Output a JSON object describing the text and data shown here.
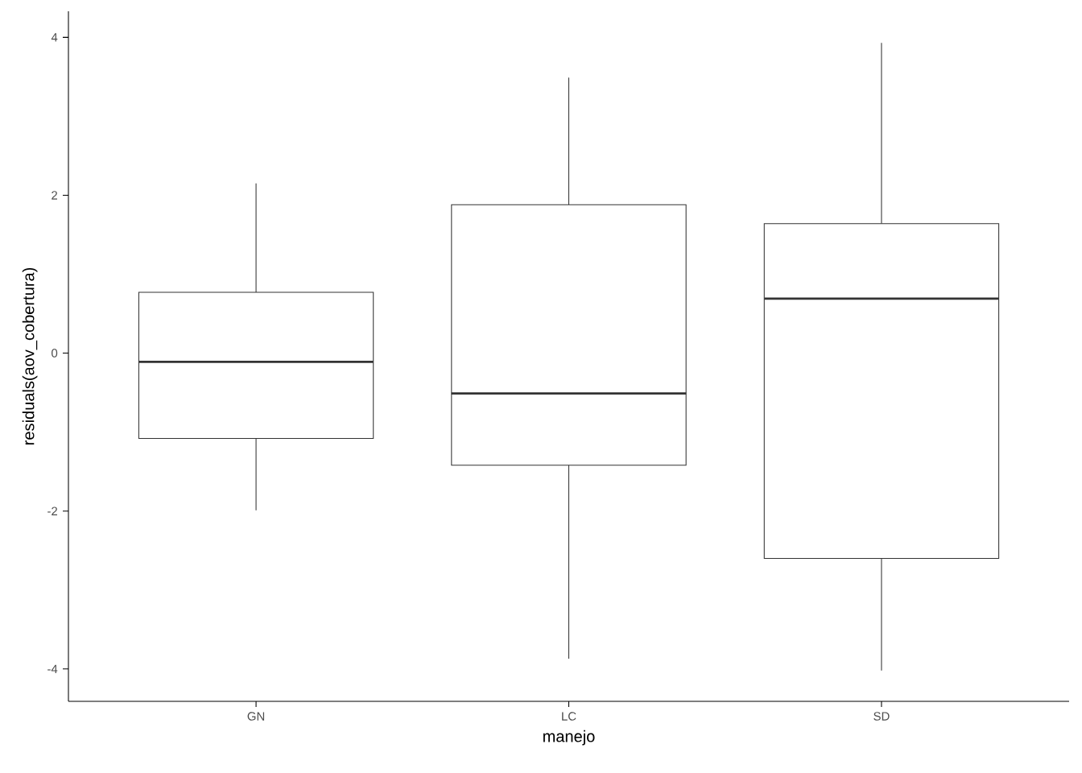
{
  "chart_data": {
    "type": "box",
    "xlabel": "manejo",
    "ylabel": "residuals(aov_cobertura)",
    "categories": [
      "GN",
      "LC",
      "SD"
    ],
    "color": "#333333",
    "boxes": [
      {
        "low": -1.99,
        "q1": -1.08,
        "median": -0.11,
        "q3": 0.77,
        "high": 2.15
      },
      {
        "low": -3.87,
        "q1": -1.42,
        "median": -0.51,
        "q3": 1.88,
        "high": 3.49
      },
      {
        "low": -4.02,
        "q1": -2.6,
        "median": 0.69,
        "q3": 1.64,
        "high": 3.93
      }
    ],
    "ylim": [
      -4.41,
      4.33
    ],
    "yticks": [
      -4,
      -2,
      0,
      2,
      4
    ]
  }
}
